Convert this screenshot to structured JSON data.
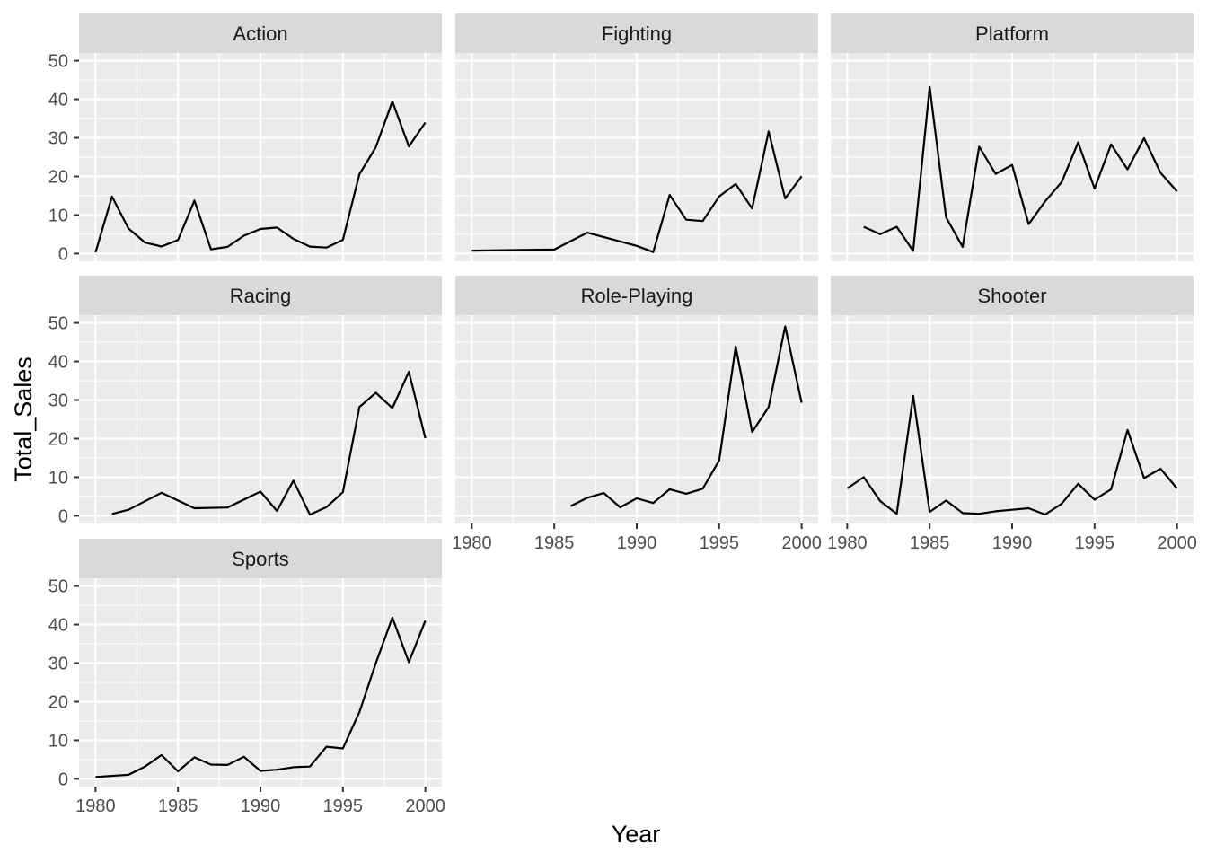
{
  "chart_data": {
    "type": "line",
    "xlabel": "Year",
    "ylabel": "Total_Sales",
    "xlim": [
      1979,
      2001
    ],
    "ylim": [
      -2,
      52
    ],
    "x_ticks": [
      1980,
      1985,
      1990,
      1995,
      2000
    ],
    "y_ticks": [
      0,
      10,
      20,
      30,
      40,
      50
    ],
    "grid": true,
    "layout": "facet_wrap 3 columns",
    "colors": {
      "panel": "#ebebeb",
      "strip": "#d9d9d9",
      "grid": "#ffffff",
      "line": "#000000"
    },
    "panels": [
      {
        "name": "Action",
        "x": [
          1980,
          1981,
          1982,
          1983,
          1984,
          1985,
          1986,
          1987,
          1988,
          1989,
          1990,
          1991,
          1992,
          1993,
          1994,
          1995,
          1996,
          1997,
          1998,
          1999,
          2000
        ],
        "values": [
          0.34,
          14.79,
          6.5,
          2.86,
          1.85,
          3.52,
          13.74,
          1.11,
          1.74,
          4.64,
          6.39,
          6.76,
          3.83,
          1.81,
          1.55,
          3.57,
          20.58,
          27.58,
          39.44,
          27.77,
          33.96
        ]
      },
      {
        "name": "Fighting",
        "x": [
          1980,
          1985,
          1987,
          1990,
          1991,
          1992,
          1993,
          1994,
          1995,
          1996,
          1997,
          1998,
          1999,
          2000
        ],
        "values": [
          0.77,
          1.05,
          5.42,
          2.0,
          0.39,
          15.19,
          8.78,
          8.43,
          14.8,
          18.04,
          11.68,
          31.66,
          14.29,
          20.03
        ]
      },
      {
        "name": "Platform",
        "x": [
          1981,
          1982,
          1983,
          1984,
          1985,
          1986,
          1987,
          1988,
          1989,
          1990,
          1991,
          1992,
          1993,
          1994,
          1995,
          1996,
          1997,
          1998,
          1999,
          2000
        ],
        "values": [
          6.93,
          5.03,
          6.93,
          0.69,
          43.17,
          9.39,
          1.74,
          27.73,
          20.66,
          22.97,
          7.64,
          13.52,
          18.5,
          28.79,
          16.85,
          28.31,
          21.83,
          29.9,
          20.93,
          16.13
        ]
      },
      {
        "name": "Racing",
        "x": [
          1981,
          1982,
          1984,
          1986,
          1988,
          1990,
          1991,
          1992,
          1993,
          1994,
          1995,
          1996,
          1997,
          1998,
          1999,
          2000
        ],
        "values": [
          0.48,
          1.57,
          5.95,
          1.96,
          2.14,
          6.26,
          1.25,
          9.1,
          0.3,
          2.23,
          6.1,
          28.19,
          31.89,
          27.9,
          37.33,
          20.12
        ]
      },
      {
        "name": "Role-Playing",
        "x": [
          1986,
          1987,
          1988,
          1989,
          1990,
          1991,
          1992,
          1993,
          1994,
          1995,
          1996,
          1997,
          1998,
          1999,
          2000
        ],
        "values": [
          2.52,
          4.65,
          5.88,
          2.2,
          4.52,
          3.31,
          6.87,
          5.71,
          7.0,
          14.34,
          43.87,
          21.72,
          28.17,
          49.09,
          29.31
        ]
      },
      {
        "name": "Shooter",
        "x": [
          1980,
          1981,
          1982,
          1983,
          1984,
          1985,
          1986,
          1987,
          1988,
          1989,
          1990,
          1991,
          1992,
          1993,
          1994,
          1995,
          1996,
          1997,
          1998,
          1999,
          2000
        ],
        "values": [
          7.07,
          10.02,
          3.81,
          0.48,
          31.1,
          1.0,
          3.96,
          0.69,
          0.51,
          1.16,
          1.56,
          1.96,
          0.32,
          3.1,
          8.28,
          4.17,
          6.86,
          22.22,
          9.76,
          12.19,
          7.07
        ]
      },
      {
        "name": "Sports",
        "x": [
          1980,
          1981,
          1982,
          1983,
          1984,
          1985,
          1986,
          1987,
          1988,
          1989,
          1990,
          1991,
          1992,
          1993,
          1994,
          1995,
          1996,
          1997,
          1998,
          1999,
          2000
        ],
        "values": [
          0.49,
          0.78,
          1.05,
          3.2,
          6.18,
          1.96,
          5.58,
          3.71,
          3.6,
          5.72,
          2.07,
          2.38,
          3.02,
          3.18,
          8.33,
          7.9,
          17.29,
          30.0,
          41.78,
          30.24,
          40.98
        ]
      }
    ]
  }
}
